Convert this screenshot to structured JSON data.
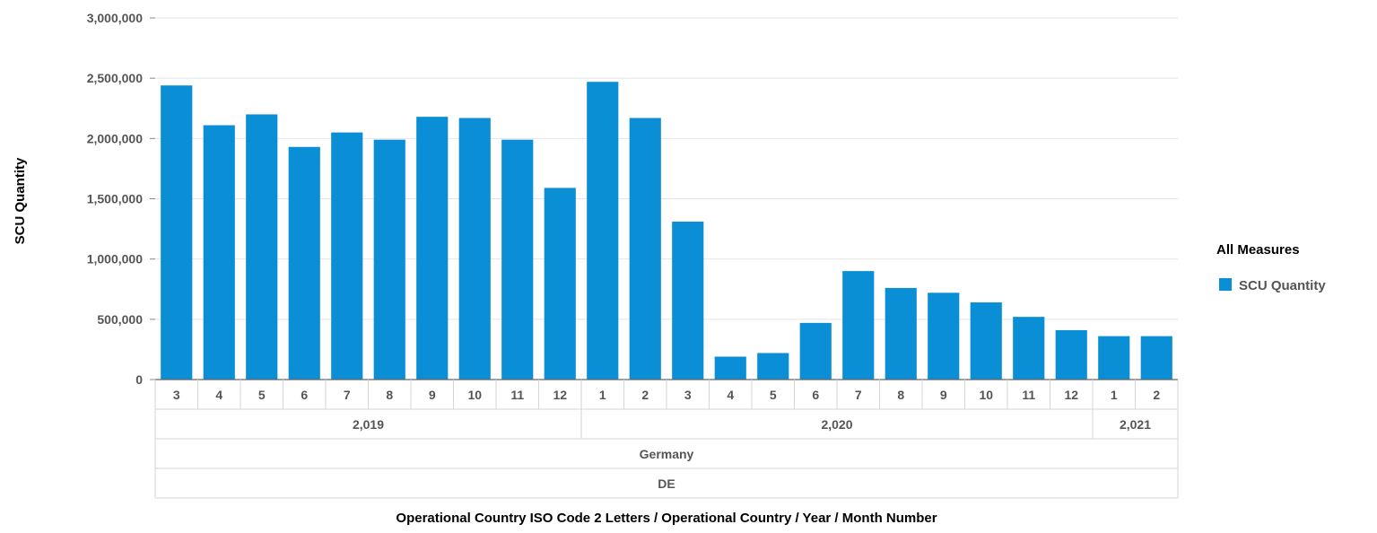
{
  "chart_data": {
    "type": "bar",
    "xlabel": "Operational Country ISO Code 2 Letters / Operational Country / Year / Month Number",
    "ylabel": "SCU Quantity",
    "ylim": [
      0,
      3000000
    ],
    "yticks": [
      "0",
      "500,000",
      "1,000,000",
      "1,500,000",
      "2,000,000",
      "2,500,000",
      "3,000,000"
    ],
    "ytick_values": [
      0,
      500000,
      1000000,
      1500000,
      2000000,
      2500000,
      3000000
    ],
    "grid": true,
    "legend": {
      "title": "All Measures",
      "position": "right"
    },
    "categories": [
      "3",
      "4",
      "5",
      "6",
      "7",
      "8",
      "9",
      "10",
      "11",
      "12",
      "1",
      "2",
      "3",
      "4",
      "5",
      "6",
      "7",
      "8",
      "9",
      "10",
      "11",
      "12",
      "1",
      "2"
    ],
    "series": [
      {
        "name": "SCU Quantity",
        "color": "#0a8fd6",
        "values": [
          2440000,
          2110000,
          2200000,
          1930000,
          2050000,
          1990000,
          2180000,
          2170000,
          1990000,
          1590000,
          2470000,
          2170000,
          1310000,
          190000,
          220000,
          470000,
          900000,
          760000,
          720000,
          640000,
          520000,
          410000,
          360000,
          360000
        ]
      }
    ],
    "year_groups": [
      {
        "label": "2,019",
        "count": 10
      },
      {
        "label": "2,020",
        "count": 12
      },
      {
        "label": "2,021",
        "count": 2
      }
    ],
    "country_label": "Germany",
    "iso_label": "DE"
  }
}
